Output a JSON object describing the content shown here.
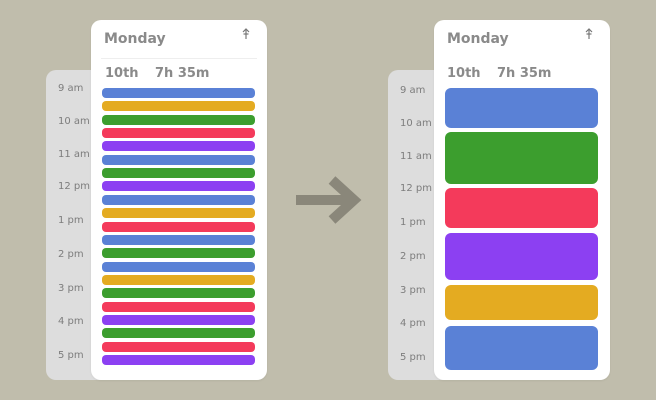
{
  "hours": [
    "9 am",
    "10 am",
    "11 am",
    "12 pm",
    "1 pm",
    "2 pm",
    "3 pm",
    "4 pm",
    "5 pm"
  ],
  "colors": {
    "blue": "#5a81d6",
    "yellow": "#e4ab21",
    "green": "#3c9e2e",
    "red": "#f43a5b",
    "purple": "#8c40f2"
  },
  "before": {
    "day": "Monday",
    "date": "10th",
    "duration": "7h 35m",
    "icon": "pin-icon",
    "events": [
      "blue",
      "yellow",
      "green",
      "red",
      "purple",
      "blue",
      "green",
      "purple",
      "blue",
      "yellow",
      "red",
      "blue",
      "green",
      "blue",
      "yellow",
      "green",
      "red",
      "purple",
      "green",
      "red",
      "purple"
    ]
  },
  "after": {
    "day": "Monday",
    "date": "10th",
    "duration": "7h 35m",
    "icon": "pin-icon",
    "events": [
      "blue",
      "green",
      "red",
      "purple",
      "yellow",
      "blue"
    ]
  },
  "arrow_icon": "arrow-right-icon"
}
